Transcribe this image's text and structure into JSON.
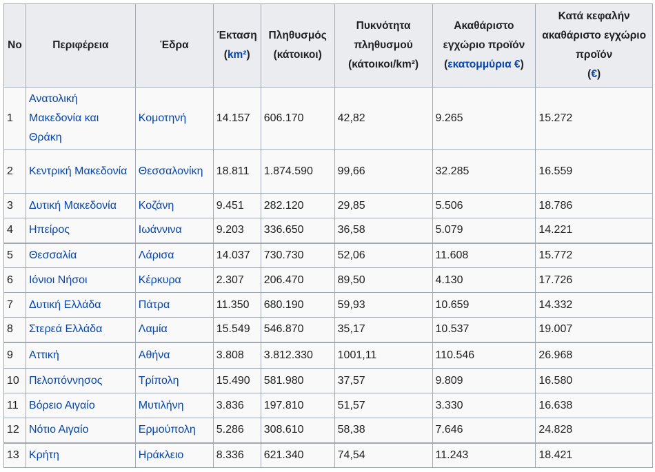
{
  "headers": {
    "no": "No",
    "region": "Περιφέρεια",
    "seat": "Έδρα",
    "area_label": "Έκταση",
    "area_unit": "km²",
    "population_label": "Πληθυσμός",
    "population_unit": "(κάτοικοι)",
    "density_line1": "Πυκνότητα",
    "density_line2": "πληθυσμού",
    "density_line3": "(κάτοικοι/km²)",
    "gdp_label": "Ακαθάριστο εγχώριο προϊόν",
    "gdp_unit": "εκατομμύρια €",
    "gdp_pc_label": "Κατά κεφαλήν ακαθάριστο εγχώριο προϊόν",
    "gdp_pc_unit": "€"
  },
  "rows": [
    {
      "no": "1",
      "region": "Ανατολική Μακεδονία και Θράκη",
      "seat": "Κομοτηνή",
      "area": "14.157",
      "population": "606.170",
      "density": "42,82",
      "gdp": "9.265",
      "gdp_pc": "15.272"
    },
    {
      "no": "2",
      "region": "Κεντρική Μακεδονία",
      "seat": "Θεσσαλονίκη",
      "area": "18.811",
      "population": "1.874.590",
      "density": "99,66",
      "gdp": "32.285",
      "gdp_pc": "16.559"
    },
    {
      "no": "3",
      "region": "Δυτική Μακεδονία",
      "seat": "Κοζάνη",
      "area": "9.451",
      "population": "282.120",
      "density": "29,85",
      "gdp": "5.506",
      "gdp_pc": "18.786"
    },
    {
      "no": "4",
      "region": "Ηπείρος",
      "seat": "Ιωάννινα",
      "area": "9.203",
      "population": "336.650",
      "density": "36,58",
      "gdp": "5.079",
      "gdp_pc": "14.221"
    },
    {
      "no": "5",
      "region": "Θεσσαλία",
      "seat": "Λάρισα",
      "area": "14.037",
      "population": "730.730",
      "density": "52,06",
      "gdp": "11.608",
      "gdp_pc": "15.772"
    },
    {
      "no": "6",
      "region": "Ιόνιοι Νήσοι",
      "seat": "Κέρκυρα",
      "area": "2.307",
      "population": "206.470",
      "density": "89,50",
      "gdp": "4.130",
      "gdp_pc": "17.726"
    },
    {
      "no": "7",
      "region": "Δυτική Ελλάδα",
      "seat": "Πάτρα",
      "area": "11.350",
      "population": "680.190",
      "density": "59,93",
      "gdp": "10.659",
      "gdp_pc": "14.332"
    },
    {
      "no": "8",
      "region": "Στερεά Ελλάδα",
      "seat": "Λαμία",
      "area": "15.549",
      "population": "546.870",
      "density": "35,17",
      "gdp": "10.537",
      "gdp_pc": "19.007"
    },
    {
      "no": "9",
      "region": "Αττική",
      "seat": "Αθήνα",
      "area": "3.808",
      "population": "3.812.330",
      "density": "1001,11",
      "gdp": "110.546",
      "gdp_pc": "26.968"
    },
    {
      "no": "10",
      "region": "Πελοπόννησος",
      "seat": "Τρίπολη",
      "area": "15.490",
      "population": "581.980",
      "density": "37,57",
      "gdp": "9.809",
      "gdp_pc": "16.580"
    },
    {
      "no": "11",
      "region": "Βόρειο Αιγαίο",
      "seat": "Μυτιλήνη",
      "area": "3.836",
      "population": "197.810",
      "density": "51,57",
      "gdp": "3.330",
      "gdp_pc": "16.638"
    },
    {
      "no": "12",
      "region": "Νότιο Αιγαίο",
      "seat": "Ερμούπολη",
      "area": "5.286",
      "population": "308.610",
      "density": "58,38",
      "gdp": "7.646",
      "gdp_pc": "24.828"
    },
    {
      "no": "13",
      "region": "Κρήτη",
      "seat": "Ηράκλειο",
      "area": "8.336",
      "population": "621.340",
      "density": "74,54",
      "gdp": "11.243",
      "gdp_pc": "18.421"
    }
  ],
  "colors": {
    "link": "#0645ad",
    "header_bg": "#eaecf0",
    "cell_bg": "#f9f9f9",
    "border": "#a2a9b1"
  }
}
